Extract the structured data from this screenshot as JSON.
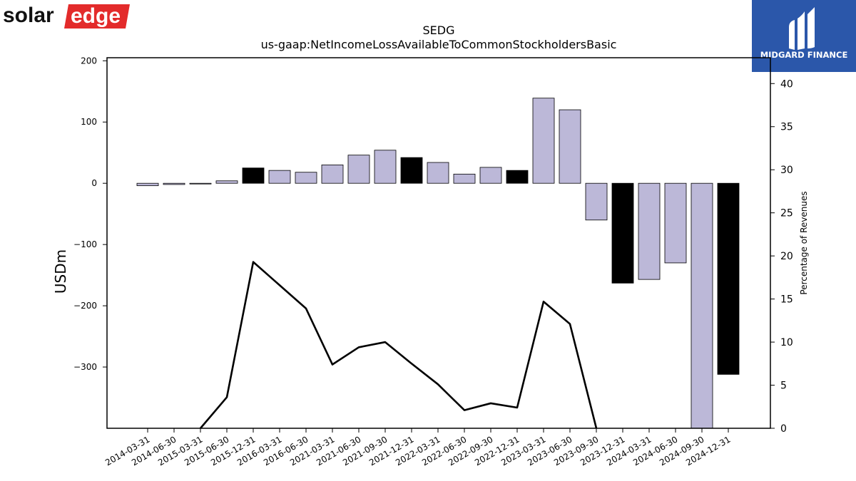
{
  "brand": {
    "company": "solaredge",
    "publisher": "MIDGARD FINANCE"
  },
  "chart_data": {
    "type": "bar",
    "title": "SEDG",
    "subtitle": "us-gaap:NetIncomeLossAvailableToCommonStockholdersBasic",
    "ylabel": "USDm",
    "y2label": "Percentage of Revenues",
    "ylim": [
      -400,
      205
    ],
    "y2lim": [
      0,
      43
    ],
    "yticks": [
      200,
      100,
      0,
      -100,
      -200,
      -300
    ],
    "y2ticks": [
      0,
      5,
      10,
      15,
      20,
      25,
      30,
      35,
      40
    ],
    "categories": [
      "2014-03-31",
      "2014-06-30",
      "2015-03-31",
      "2015-06-30",
      "2015-12-31",
      "2016-03-31",
      "2016-06-30",
      "2021-03-31",
      "2021-06-30",
      "2021-09-30",
      "2021-12-31",
      "2022-03-31",
      "2022-06-30",
      "2022-09-30",
      "2022-12-31",
      "2023-03-31",
      "2023-06-30",
      "2023-09-30",
      "2023-12-31",
      "2024-03-31",
      "2024-06-30",
      "2024-09-30",
      "2024-12-31"
    ],
    "series": [
      {
        "values": [
          -4,
          -2,
          -0.5,
          4,
          25,
          21,
          18,
          30,
          46,
          54,
          42,
          34,
          15,
          26,
          21,
          139,
          120,
          -60,
          -163,
          -157,
          -130,
          -400,
          -312
        ],
        "highlight": [
          false,
          false,
          false,
          false,
          true,
          false,
          false,
          false,
          false,
          false,
          true,
          false,
          false,
          false,
          true,
          false,
          false,
          false,
          true,
          false,
          false,
          false,
          true
        ]
      },
      {
        "type": "line",
        "values": [
          null,
          null,
          0,
          3.6,
          19.3,
          16.6,
          13.9,
          7.4,
          9.4,
          10.0,
          7.5,
          5.1,
          2.1,
          2.9,
          2.4,
          14.7,
          12.1,
          0,
          null,
          null,
          null,
          null,
          null
        ]
      }
    ],
    "colors": {
      "bar": "#bcb8d8",
      "bar_highlight": "#000000",
      "line": "#000000"
    }
  }
}
